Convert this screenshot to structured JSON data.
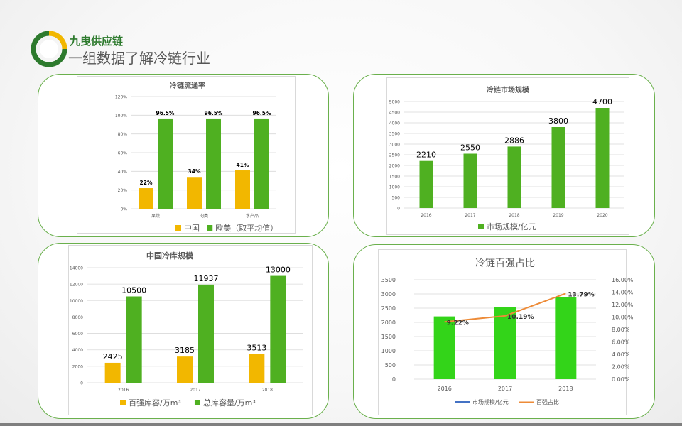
{
  "header": {
    "brand": "九曳供应链",
    "subtitle": "一组数据了解冷链行业"
  },
  "colors": {
    "yellow": "#f2b700",
    "green": "#4fb021",
    "bright_green": "#33d419",
    "blue": "#4472c4",
    "orange": "#ed8b38"
  },
  "charts": [
    {
      "type": "bar",
      "title": "冷链流通率",
      "categories": [
        "果蔬",
        "肉类",
        "水产品"
      ],
      "series": [
        {
          "name": "中国",
          "values": [
            22,
            34,
            41
          ],
          "labels": [
            "22%",
            "34%",
            "41%"
          ]
        },
        {
          "name": "欧美（取平均值）",
          "values": [
            96.5,
            96.5,
            96.5
          ],
          "labels": [
            "96.5%",
            "96.5%",
            "96.5%"
          ]
        }
      ],
      "ylim": [
        0,
        120
      ],
      "yticks": [
        "0%",
        "20%",
        "40%",
        "60%",
        "80%",
        "100%",
        "120%"
      ]
    },
    {
      "type": "bar",
      "title": "冷链市场规模",
      "categories": [
        "2016",
        "2017",
        "2018",
        "2019",
        "2020"
      ],
      "series": [
        {
          "name": "市场规模/亿元",
          "values": [
            2210,
            2550,
            2886,
            3800,
            4700
          ],
          "labels": [
            "2210",
            "2550",
            "2886",
            "3800",
            "4700"
          ]
        }
      ],
      "ylim": [
        0,
        5000
      ],
      "yticks": [
        "0",
        "500",
        "1000",
        "1500",
        "2000",
        "2500",
        "3000",
        "3500",
        "4000",
        "4500",
        "5000"
      ]
    },
    {
      "type": "bar",
      "title": "中国冷库规模",
      "categories": [
        "2016",
        "2017",
        "2018"
      ],
      "series": [
        {
          "name": "百强库容/万m³",
          "values": [
            2425,
            3185,
            3513
          ],
          "labels": [
            "2425",
            "3185",
            "3513"
          ]
        },
        {
          "name": "总库容量/万m³",
          "values": [
            10500,
            11937,
            13000
          ],
          "labels": [
            "10500",
            "11937",
            "13000"
          ]
        }
      ],
      "ylim": [
        0,
        14000
      ],
      "yticks": [
        "0",
        "2000",
        "4000",
        "6000",
        "8000",
        "10000",
        "12000",
        "14000"
      ]
    },
    {
      "type": "bar+line",
      "title": "冷链百强占比",
      "categories": [
        "2016",
        "2017",
        "2018"
      ],
      "series": [
        {
          "name": "市场规模/亿元",
          "values": [
            2210,
            2550,
            2886
          ]
        },
        {
          "name": "百强占比",
          "values": [
            9.22,
            10.19,
            13.79
          ],
          "labels": [
            "9.22%",
            "10.19%",
            "13.79%"
          ]
        }
      ],
      "ylim": [
        0,
        3500
      ],
      "yticks": [
        "0",
        "500",
        "1000",
        "1500",
        "2000",
        "2500",
        "3000",
        "3500"
      ],
      "y2lim": [
        0,
        16
      ],
      "y2ticks": [
        "0.00%",
        "2.00%",
        "4.00%",
        "6.00%",
        "8.00%",
        "10.00%",
        "12.00%",
        "14.00%",
        "16.00%"
      ]
    }
  ]
}
